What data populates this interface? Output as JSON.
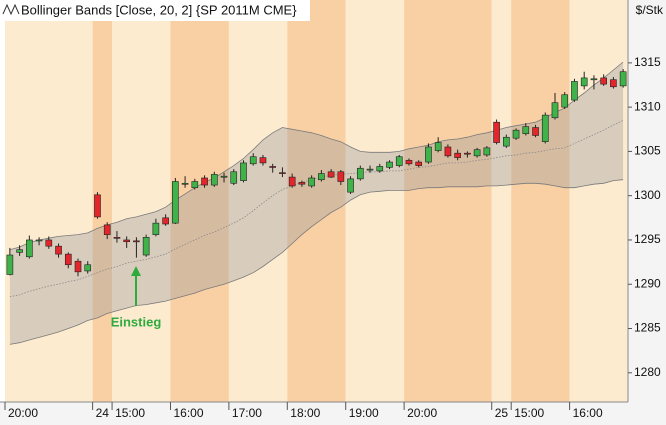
{
  "chart_data": {
    "type": "candlestick",
    "title": "Bollinger Bands [Close, 20, 2] {SP 2011M CME}",
    "y_axis_label": "$/Stk",
    "annotation": "Einstieg",
    "categories": [
      "20:00",
      null,
      null,
      null,
      null,
      null,
      null,
      null,
      null,
      "24",
      null,
      "15:00",
      null,
      null,
      null,
      null,
      null,
      "16:00",
      null,
      null,
      null,
      null,
      null,
      "17:00",
      null,
      null,
      null,
      null,
      null,
      "18:00",
      null,
      null,
      null,
      null,
      null,
      "19:00",
      null,
      null,
      null,
      null,
      null,
      "20:00",
      null,
      null,
      null,
      null,
      null,
      null,
      null,
      null,
      "25",
      null,
      "15:00",
      null,
      null,
      null,
      null,
      null,
      "16:00",
      null,
      null,
      null,
      null,
      null
    ],
    "open": [
      1291.1,
      1293.6,
      1293.1,
      1294.9,
      1295.0,
      1294.3,
      1293.4,
      1292.6,
      1291.5,
      1300.1,
      1296.7,
      1295.3,
      1295.0,
      1294.9,
      1293.3,
      1295.6,
      1297.5,
      1296.9,
      1301.3,
      1300.9,
      1302.0,
      1301.2,
      1302.1,
      1301.4,
      1301.7,
      1303.6,
      1304.3,
      1303.3,
      1302.6,
      1302.1,
      1301.5,
      1301.1,
      1301.8,
      1302.7,
      1302.7,
      1300.4,
      1301.9,
      1303.0,
      1302.8,
      1303.2,
      1303.4,
      1304.0,
      1303.8,
      1303.8,
      1305.1,
      1305.5,
      1304.8,
      1304.8,
      1304.5,
      1304.6,
      1308.3,
      1305.6,
      1306.5,
      1307.0,
      1307.7,
      1306.1,
      1308.8,
      1310.0,
      1310.8,
      1312.4,
      1313.2,
      1313.3,
      1313.1,
      1312.4
    ],
    "high": [
      1294.1,
      1294.4,
      1295.5,
      1295.3,
      1295.4,
      1294.6,
      1293.6,
      1292.9,
      1292.6,
      1300.4,
      1297.0,
      1296.0,
      1295.4,
      1295.3,
      1295.6,
      1297.4,
      1297.9,
      1302.0,
      1302.2,
      1301.9,
      1302.3,
      1302.7,
      1302.6,
      1303.0,
      1304.0,
      1304.8,
      1304.6,
      1303.6,
      1303.2,
      1302.5,
      1301.7,
      1302.3,
      1302.9,
      1303.0,
      1302.9,
      1302.2,
      1303.4,
      1303.4,
      1303.6,
      1304.0,
      1304.6,
      1304.2,
      1304.0,
      1305.9,
      1306.6,
      1305.8,
      1305.2,
      1305.0,
      1305.4,
      1305.6,
      1308.6,
      1306.9,
      1307.6,
      1308.2,
      1308.0,
      1309.4,
      1311.6,
      1311.7,
      1313.2,
      1314.0,
      1313.6,
      1313.7,
      1313.4,
      1314.3
    ],
    "low": [
      1291.0,
      1293.2,
      1292.9,
      1294.4,
      1294.0,
      1293.0,
      1291.8,
      1290.9,
      1291.2,
      1297.4,
      1295.1,
      1294.7,
      1294.1,
      1293.0,
      1293.1,
      1295.4,
      1296.6,
      1296.8,
      1300.9,
      1300.7,
      1300.9,
      1301.0,
      1301.5,
      1301.2,
      1301.5,
      1303.4,
      1303.4,
      1302.6,
      1302.1,
      1300.9,
      1301.0,
      1300.9,
      1301.6,
      1302.0,
      1301.2,
      1300.2,
      1301.7,
      1302.6,
      1302.6,
      1303.0,
      1303.2,
      1303.4,
      1303.2,
      1303.6,
      1304.9,
      1304.3,
      1304.0,
      1304.3,
      1304.3,
      1304.4,
      1305.8,
      1305.4,
      1306.3,
      1306.8,
      1306.6,
      1305.9,
      1308.6,
      1309.8,
      1310.6,
      1312.0,
      1312.0,
      1312.4,
      1312.1,
      1312.2
    ],
    "close": [
      1293.3,
      1293.9,
      1295.0,
      1295.0,
      1294.3,
      1293.4,
      1292.2,
      1291.4,
      1292.2,
      1297.6,
      1295.6,
      1295.2,
      1294.8,
      1294.8,
      1295.3,
      1296.9,
      1296.8,
      1301.6,
      1301.4,
      1301.6,
      1301.2,
      1302.4,
      1302.2,
      1302.7,
      1303.7,
      1304.4,
      1303.7,
      1303.2,
      1302.5,
      1301.1,
      1301.3,
      1302.0,
      1302.5,
      1302.1,
      1301.6,
      1301.9,
      1303.1,
      1303.0,
      1303.3,
      1303.8,
      1304.4,
      1303.6,
      1303.4,
      1305.5,
      1306.0,
      1304.5,
      1304.3,
      1304.7,
      1305.2,
      1305.4,
      1306.0,
      1306.6,
      1307.4,
      1307.8,
      1306.8,
      1309.1,
      1310.5,
      1311.4,
      1312.9,
      1313.3,
      1313.2,
      1312.6,
      1312.3,
      1314.0
    ],
    "upper_band": [
      1293.9,
      1294.2,
      1294.7,
      1295.0,
      1295.2,
      1295.4,
      1295.5,
      1295.6,
      1295.8,
      1296.3,
      1296.7,
      1297.0,
      1297.4,
      1297.6,
      1297.9,
      1298.2,
      1298.7,
      1299.5,
      1300.2,
      1300.9,
      1301.5,
      1302.0,
      1302.7,
      1303.4,
      1304.2,
      1305.2,
      1306.3,
      1307.1,
      1307.7,
      1307.5,
      1307.3,
      1307.1,
      1306.8,
      1306.4,
      1306.1,
      1305.5,
      1305.0,
      1304.9,
      1304.9,
      1304.9,
      1305.0,
      1305.3,
      1305.5,
      1305.7,
      1306.1,
      1306.3,
      1306.4,
      1306.6,
      1306.9,
      1307.1,
      1307.4,
      1307.7,
      1307.9,
      1308.1,
      1308.3,
      1308.8,
      1309.4,
      1309.9,
      1310.8,
      1311.6,
      1312.5,
      1313.3,
      1314.2,
      1315.1
    ],
    "middle_band": [
      1288.6,
      1288.8,
      1289.2,
      1289.5,
      1289.8,
      1290.0,
      1290.3,
      1290.5,
      1290.9,
      1291.3,
      1291.7,
      1292.0,
      1292.4,
      1292.6,
      1292.8,
      1293.1,
      1293.4,
      1294.0,
      1294.5,
      1295.0,
      1295.5,
      1295.9,
      1296.4,
      1296.9,
      1297.5,
      1298.3,
      1299.2,
      1300.0,
      1300.7,
      1301.1,
      1301.5,
      1301.8,
      1302.1,
      1302.3,
      1302.4,
      1302.5,
      1302.6,
      1302.7,
      1302.7,
      1302.8,
      1302.8,
      1303.0,
      1303.2,
      1303.3,
      1303.5,
      1303.7,
      1303.7,
      1303.8,
      1304.0,
      1304.1,
      1304.3,
      1304.5,
      1304.6,
      1304.8,
      1304.9,
      1305.1,
      1305.3,
      1305.4,
      1305.9,
      1306.4,
      1306.9,
      1307.4,
      1308.0,
      1308.5
    ],
    "lower_band": [
      1283.2,
      1283.4,
      1283.7,
      1284.0,
      1284.3,
      1284.6,
      1285.0,
      1285.4,
      1285.9,
      1286.2,
      1286.7,
      1287.0,
      1287.3,
      1287.6,
      1287.7,
      1287.9,
      1288.1,
      1288.4,
      1288.7,
      1289.0,
      1289.4,
      1289.7,
      1290.0,
      1290.4,
      1290.8,
      1291.3,
      1292.0,
      1292.8,
      1293.6,
      1294.6,
      1295.6,
      1296.5,
      1297.3,
      1298.1,
      1298.7,
      1299.5,
      1300.1,
      1300.4,
      1300.5,
      1300.6,
      1300.6,
      1300.6,
      1300.8,
      1300.9,
      1300.9,
      1301.0,
      1301.0,
      1301.0,
      1301.0,
      1301.1,
      1301.1,
      1301.2,
      1301.3,
      1301.4,
      1301.4,
      1301.3,
      1301.1,
      1300.9,
      1300.9,
      1301.1,
      1301.3,
      1301.4,
      1301.7,
      1301.8
    ],
    "up_color": "#3fb24a",
    "down_color": "#e2262b",
    "band_color": "#9a9a9a",
    "ylim": [
      1276.7,
      1322.1
    ],
    "yticks": [
      1280,
      1285,
      1290,
      1295,
      1300,
      1305,
      1310,
      1315
    ],
    "grid": false
  }
}
